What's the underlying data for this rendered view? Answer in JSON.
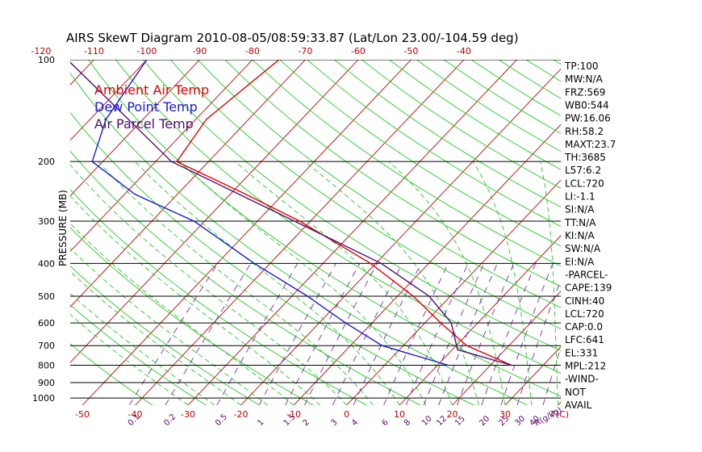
{
  "title": "AIRS SkewT Diagram 2010-08-05/08:59:33.87 (Lat/Lon 23.00/-104.59 deg)",
  "colors": {
    "ambient": "#e00000",
    "dewpoint": "#1a1ad8",
    "parcel": "#4a1070",
    "isotherm": "#c00000",
    "dry_adiabat": "#22cc22",
    "moist_adiabat": "#22cc22",
    "mixing_ratio": "#7a2ab0",
    "isobar": "#000000"
  },
  "chart_data": {
    "type": "line",
    "title": "AIRS SkewT Diagram 2010-08-05/08:59:33.87 (Lat/Lon 23.00/-104.59 deg)",
    "ylabel": "PRESSURE (MB)",
    "xlabel_unit": "T(C)",
    "mixing_ratio_unit": "R(g/kg)",
    "pressure_ticks": [
      100,
      200,
      300,
      400,
      500,
      600,
      700,
      800,
      900,
      1000
    ],
    "pressure_range": [
      1050,
      100
    ],
    "top_temperature_ticks": [
      -120,
      -110,
      -100,
      -90,
      -80,
      -70,
      -60,
      -50,
      -40
    ],
    "bottom_temperature_ticks": [
      -50,
      -40,
      -30,
      -20,
      -10,
      0,
      10,
      20,
      30
    ],
    "mixing_ratio_ticks": [
      "0.1",
      "0.2",
      "0.5",
      "1",
      "1.5",
      "2",
      "3",
      "4",
      "6",
      "8",
      "10",
      "12",
      "15",
      "20",
      "25",
      "30",
      "40"
    ],
    "legend": [
      "Ambient Air Temp",
      "Dew Point Temp",
      "Air Parcel Temp"
    ],
    "series": [
      {
        "name": "Ambient Air Temp",
        "points": [
          [
            100,
            -75
          ],
          [
            150,
            -78
          ],
          [
            200,
            -76
          ],
          [
            250,
            -57
          ],
          [
            300,
            -42
          ],
          [
            400,
            -21
          ],
          [
            500,
            -7
          ],
          [
            600,
            3
          ],
          [
            700,
            12
          ],
          [
            800,
            24
          ]
        ]
      },
      {
        "name": "Dew Point Temp",
        "points": [
          [
            100,
            -100
          ],
          [
            150,
            -97
          ],
          [
            200,
            -92
          ],
          [
            250,
            -78
          ],
          [
            300,
            -62
          ],
          [
            400,
            -43
          ],
          [
            500,
            -27
          ],
          [
            600,
            -15
          ],
          [
            700,
            -4
          ],
          [
            800,
            12
          ]
        ]
      },
      {
        "name": "Air Parcel Temp",
        "points": [
          [
            100,
            -115
          ],
          [
            200,
            -77
          ],
          [
            300,
            -43
          ],
          [
            400,
            -19
          ],
          [
            500,
            -4
          ],
          [
            600,
            5
          ],
          [
            720,
            11
          ],
          [
            800,
            24
          ]
        ]
      }
    ],
    "indices": [
      "TP:100",
      "MW:N/A",
      "FRZ:569",
      "WB0:544",
      "PW:16.06",
      "RH:58.2",
      "MAXT:23.7",
      "TH:3685",
      "L57:6.2",
      "LCL:720",
      "LI:-1.1",
      "SI:N/A",
      "TT:N/A",
      "KI:N/A",
      "SW:N/A",
      "EI:N/A",
      "-PARCEL-",
      "CAPE:139",
      "CINH:40",
      "LCL:720",
      "CAP:0.0",
      "LFC:641",
      "EL:331",
      "MPL:212",
      "-WIND-",
      "NOT",
      "AVAIL"
    ]
  }
}
